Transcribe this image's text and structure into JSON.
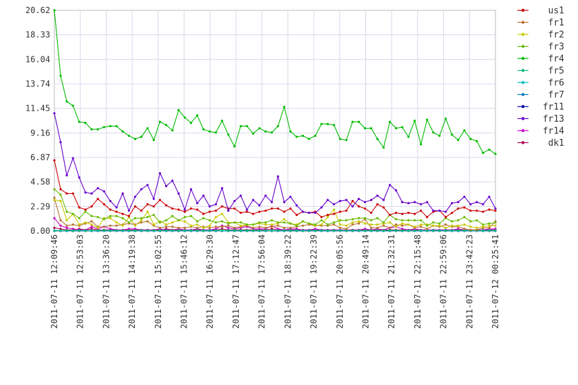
{
  "chart_data": {
    "type": "line",
    "title": "",
    "xlabel": "",
    "ylabel": "",
    "ylim": [
      0,
      20.62
    ],
    "grid": true,
    "legend_position": "right",
    "yticks": [
      "0.00",
      "2.29",
      "4.58",
      "6.87",
      "9.16",
      "11.45",
      "13.74",
      "16.04",
      "18.33",
      "20.62"
    ],
    "xticks": [
      "2011-07-11 12:09:46",
      "2011-07-11 12:53:03",
      "2011-07-11 13:36:20",
      "2011-07-11 14:19:38",
      "2011-07-11 15:02:55",
      "2011-07-11 15:46:12",
      "2011-07-11 16:29:30",
      "2011-07-11 17:12:47",
      "2011-07-11 17:56:04",
      "2011-07-11 18:39:22",
      "2011-07-11 19:22:39",
      "2011-07-11 20:05:56",
      "2011-07-11 20:49:14",
      "2011-07-11 21:32:31",
      "2011-07-11 22:15:48",
      "2011-07-11 22:59:06",
      "2011-07-11 23:42:23",
      "2011-07-12 00:25:41"
    ],
    "series": [
      {
        "name": "us1",
        "color": "#cc0000",
        "values": [
          6.6,
          3.9,
          3.5,
          3.5,
          2.2,
          2.0,
          2.3,
          3.0,
          2.5,
          2.0,
          1.8,
          1.6,
          1.4,
          2.3,
          1.9,
          2.5,
          2.3,
          2.9,
          2.4,
          2.1,
          2.0,
          1.8,
          2.1,
          2.0,
          1.6,
          1.8,
          1.9,
          2.3,
          2.1,
          2.1,
          1.7,
          1.8,
          1.6,
          1.8,
          1.9,
          2.1,
          2.1,
          1.8,
          2.1,
          1.5,
          1.8,
          1.7,
          1.8,
          1.3,
          1.5,
          1.6,
          1.8,
          1.9,
          2.8,
          2.3,
          2.1,
          1.7,
          2.5,
          2.2,
          1.5,
          1.7,
          1.6,
          1.7,
          1.6,
          1.9,
          1.3,
          1.8,
          1.9,
          1.3,
          1.7,
          2.1,
          2.2,
          1.9,
          1.9,
          1.8,
          2.0,
          1.9
        ]
      },
      {
        "name": "fr1",
        "color": "#b87333",
        "values": [
          3.1,
          1.0,
          0.5,
          0.6,
          0.5,
          0.7,
          0.9,
          0.4,
          0.4,
          0.5,
          0.5,
          0.6,
          0.7,
          0.6,
          0.8,
          0.9,
          0.5,
          0.3,
          0.4,
          0.4,
          0.3,
          0.3,
          0.4,
          0.3,
          0.4,
          0.3,
          0.4,
          0.4,
          0.5,
          0.3,
          0.4,
          0.5,
          0.3,
          0.4,
          0.3,
          0.4,
          0.5,
          0.3,
          0.3,
          0.4,
          0.5,
          0.6,
          0.5,
          0.5,
          0.5,
          0.6,
          0.3,
          0.2,
          0.6,
          0.7,
          1.1,
          0.3,
          0.3,
          0.5,
          0.3,
          0.6,
          0.5,
          0.6,
          0.3,
          0.4,
          0.2,
          0.5,
          0.4,
          0.6,
          0.4,
          0.4,
          0.2,
          0.1,
          0.1,
          0.3,
          0.3,
          0.9
        ]
      },
      {
        "name": "fr2",
        "color": "#c8c800",
        "values": [
          2.9,
          2.8,
          1.0,
          1.6,
          0.6,
          0.8,
          0.6,
          0.3,
          1.2,
          1.2,
          0.8,
          0.5,
          1.3,
          0.5,
          1.0,
          1.8,
          0.6,
          0.9,
          0.6,
          0.8,
          1.0,
          0.9,
          0.5,
          0.6,
          0.3,
          0.5,
          1.3,
          1.6,
          0.8,
          0.8,
          0.5,
          0.6,
          0.6,
          0.7,
          0.6,
          0.6,
          0.7,
          1.1,
          0.7,
          0.6,
          0.9,
          0.7,
          0.5,
          0.6,
          1.3,
          2.0,
          0.6,
          0.5,
          0.8,
          0.9,
          0.7,
          0.6,
          0.6,
          0.7,
          0.8,
          0.4,
          0.7,
          0.6,
          0.4,
          0.6,
          0.6,
          0.5,
          0.5,
          0.3,
          0.5,
          0.5,
          0.6,
          0.4,
          0.3,
          0.4,
          0.5,
          0.5
        ]
      },
      {
        "name": "fr3",
        "color": "#66bb00",
        "values": [
          3.9,
          3.4,
          1.8,
          1.6,
          1.2,
          1.8,
          1.4,
          1.3,
          1.1,
          1.4,
          1.4,
          1.2,
          0.8,
          1.2,
          1.2,
          1.3,
          1.5,
          0.8,
          1.0,
          1.4,
          1.0,
          1.3,
          1.4,
          0.9,
          1.2,
          1.0,
          0.8,
          0.9,
          0.7,
          0.8,
          0.8,
          0.6,
          0.6,
          0.8,
          0.8,
          1.0,
          0.8,
          0.8,
          0.7,
          0.5,
          0.9,
          0.7,
          0.6,
          1.0,
          0.6,
          0.8,
          1.0,
          1.0,
          1.1,
          1.2,
          1.2,
          1.0,
          1.2,
          0.8,
          1.5,
          1.1,
          1.0,
          1.0,
          1.0,
          1.0,
          0.5,
          0.8,
          0.7,
          1.2,
          0.9,
          1.0,
          1.3,
          0.9,
          1.0,
          0.6,
          0.7,
          0.8
        ]
      },
      {
        "name": "fr4",
        "color": "#00bb00",
        "values": [
          20.62,
          14.5,
          12.1,
          11.7,
          10.2,
          10.1,
          9.5,
          9.5,
          9.7,
          9.8,
          9.8,
          9.3,
          8.9,
          8.6,
          8.8,
          9.6,
          8.5,
          10.2,
          9.9,
          9.4,
          11.3,
          10.6,
          10.1,
          10.8,
          9.5,
          9.3,
          9.2,
          10.3,
          9.0,
          7.9,
          9.8,
          9.8,
          9.1,
          9.6,
          9.3,
          9.2,
          9.8,
          11.6,
          9.3,
          8.8,
          8.9,
          8.6,
          8.9,
          10.0,
          10.0,
          9.9,
          8.6,
          8.5,
          10.2,
          10.2,
          9.6,
          9.6,
          8.6,
          7.8,
          10.2,
          9.6,
          9.7,
          8.8,
          10.3,
          8.1,
          10.4,
          9.2,
          8.9,
          10.5,
          9.0,
          8.5,
          9.4,
          8.6,
          8.4,
          7.3,
          7.6,
          7.2
        ]
      },
      {
        "name": "fr5",
        "color": "#00bb77",
        "values": [
          0.05,
          0.05,
          0.05,
          0.05,
          0.05,
          0.05,
          0.05,
          0.05,
          0.05,
          0.05,
          0.05,
          0.05,
          0.05,
          0.05,
          0.05,
          0.05,
          0.05,
          0.05,
          0.05,
          0.05,
          0.05,
          0.05,
          0.05,
          0.05,
          0.05,
          0.05,
          0.05,
          0.05,
          0.05,
          0.05,
          0.05,
          0.05,
          0.05,
          0.05,
          0.05,
          0.05,
          0.05,
          0.05,
          0.05,
          0.05,
          0.05,
          0.05,
          0.05,
          0.05,
          0.05,
          0.05,
          0.05,
          0.05,
          0.05,
          0.05,
          0.05,
          0.05,
          0.05,
          0.05,
          0.05,
          0.05,
          0.05,
          0.05,
          0.05,
          0.05,
          0.05,
          0.05,
          0.05,
          0.05,
          0.05,
          0.05,
          0.05,
          0.05,
          0.05,
          0.05,
          0.05,
          0.05
        ]
      },
      {
        "name": "fr6",
        "color": "#00bbbb",
        "values": [
          0.03,
          0.03,
          0.03,
          0.03,
          0.03,
          0.03,
          0.03,
          0.03,
          0.03,
          0.03,
          0.03,
          0.03,
          0.03,
          0.03,
          0.03,
          0.03,
          0.03,
          0.03,
          0.03,
          0.03,
          0.03,
          0.03,
          0.03,
          0.03,
          0.03,
          0.03,
          0.03,
          0.03,
          0.03,
          0.03,
          0.03,
          0.03,
          0.03,
          0.03,
          0.03,
          0.03,
          0.03,
          0.03,
          0.03,
          0.03,
          0.03,
          0.03,
          0.03,
          0.03,
          0.03,
          0.03,
          0.03,
          0.03,
          0.03,
          0.03,
          0.03,
          0.03,
          0.03,
          0.03,
          0.03,
          0.03,
          0.03,
          0.03,
          0.03,
          0.03,
          0.03,
          0.03,
          0.03,
          0.03,
          0.03,
          0.03,
          0.03,
          0.03,
          0.03,
          0.03,
          0.03,
          0.03
        ]
      },
      {
        "name": "fr7",
        "color": "#0077bb",
        "values": [
          0.02,
          0.02,
          0.02,
          0.02,
          0.02,
          0.02,
          0.02,
          0.02,
          0.02,
          0.02,
          0.02,
          0.02,
          0.02,
          0.02,
          0.02,
          0.02,
          0.02,
          0.02,
          0.02,
          0.02,
          0.02,
          0.02,
          0.02,
          0.02,
          0.02,
          0.02,
          0.02,
          0.02,
          0.02,
          0.02,
          0.02,
          0.02,
          0.02,
          0.02,
          0.02,
          0.02,
          0.02,
          0.02,
          0.02,
          0.02,
          0.02,
          0.02,
          0.02,
          0.02,
          0.02,
          0.02,
          0.02,
          0.02,
          0.02,
          0.02,
          0.02,
          0.02,
          0.02,
          0.02,
          0.02,
          0.02,
          0.02,
          0.02,
          0.02,
          0.02,
          0.02,
          0.02,
          0.02,
          0.02,
          0.02,
          0.02,
          0.02,
          0.02,
          0.02,
          0.02,
          0.02,
          0.02
        ]
      },
      {
        "name": "fr11",
        "color": "#0000aa",
        "values": [
          0.01,
          0.01,
          0.01,
          0.01,
          0.01,
          0.01,
          0.01,
          0.01,
          0.01,
          0.01,
          0.01,
          0.01,
          0.01,
          0.01,
          0.01,
          0.01,
          0.01,
          0.01,
          0.01,
          0.01,
          0.01,
          0.01,
          0.01,
          0.01,
          0.01,
          0.01,
          0.01,
          0.01,
          0.01,
          0.01,
          0.01,
          0.01,
          0.01,
          0.01,
          0.01,
          0.01,
          0.01,
          0.01,
          0.01,
          0.01,
          0.01,
          0.01,
          0.01,
          0.01,
          0.01,
          0.01,
          0.01,
          0.01,
          0.01,
          0.01,
          0.01,
          0.01,
          0.01,
          0.01,
          0.01,
          0.01,
          0.01,
          0.01,
          0.01,
          0.01,
          0.01,
          0.01,
          0.01,
          0.01,
          0.01,
          0.01,
          0.01,
          0.01,
          0.01,
          0.01,
          0.01,
          0.01
        ]
      },
      {
        "name": "fr13",
        "color": "#6600cc",
        "values": [
          11.0,
          8.3,
          5.2,
          6.8,
          5.0,
          3.6,
          3.5,
          4.0,
          3.7,
          2.8,
          2.2,
          3.5,
          1.9,
          3.2,
          3.9,
          4.3,
          3.0,
          5.4,
          4.2,
          4.7,
          3.5,
          2.0,
          3.9,
          2.6,
          3.3,
          2.3,
          2.5,
          4.0,
          1.9,
          2.8,
          3.3,
          2.0,
          2.9,
          2.4,
          3.3,
          2.7,
          5.1,
          2.7,
          3.2,
          2.4,
          1.8,
          1.7,
          1.7,
          2.2,
          2.9,
          2.5,
          2.8,
          2.9,
          2.3,
          3.0,
          2.7,
          2.9,
          3.3,
          2.9,
          4.3,
          3.8,
          2.7,
          2.6,
          2.7,
          2.5,
          2.7,
          1.9,
          1.9,
          1.8,
          2.6,
          2.7,
          3.2,
          2.5,
          2.7,
          2.5,
          3.2,
          2.1
        ]
      },
      {
        "name": "fr14",
        "color": "#cc00cc",
        "values": [
          1.2,
          0.5,
          0.3,
          0.2,
          0.1,
          0.1,
          0.4,
          0.2,
          0.4,
          0.2,
          0.1,
          0.1,
          0.2,
          0.2,
          0.1,
          0.1,
          0.1,
          0.2,
          0.1,
          0.1,
          0.2,
          0.1,
          0.1,
          0.2,
          0.1,
          0.1,
          0.2,
          0.5,
          0.3,
          0.2,
          0.3,
          0.4,
          0.2,
          0.2,
          0.2,
          0.5,
          0.2,
          0.1,
          0.2,
          0.2,
          0.1,
          0.1,
          0.2,
          0.1,
          0.1,
          0.1,
          0.1,
          0.1,
          0.1,
          0.1,
          0.2,
          0.1,
          0.2,
          0.1,
          0.3,
          0.4,
          0.2,
          0.1,
          0.2,
          0.1,
          0.1,
          0.1,
          0.1,
          0.1,
          0.1,
          0.2,
          0.1,
          0.1,
          0.1,
          0.1,
          0.2,
          0.2
        ]
      },
      {
        "name": "dk1",
        "color": "#aa0055",
        "values": [
          0.3,
          0.2,
          0.1,
          0.1,
          0.2,
          0.1,
          0.2,
          0.1,
          0.1,
          0.1,
          0.1,
          0.1,
          0.1,
          0.1,
          0.1,
          0.1,
          0.1,
          0.1,
          0.2,
          0.1,
          0.1,
          0.1,
          0.1,
          0.1,
          0.1,
          0.1,
          0.1,
          0.2,
          0.1,
          0.1,
          0.1,
          0.1,
          0.1,
          0.1,
          0.1,
          0.2,
          0.1,
          0.1,
          0.1,
          0.1,
          0.1,
          0.1,
          0.1,
          0.1,
          0.1,
          0.1,
          0.1,
          0.1,
          0.1,
          0.1,
          0.1,
          0.1,
          0.1,
          0.1,
          0.1,
          0.1,
          0.1,
          0.1,
          0.1,
          0.1,
          0.1,
          0.1,
          0.1,
          0.1,
          0.1,
          0.1,
          0.1,
          0.1,
          0.1,
          0.1,
          0.1,
          0.1
        ]
      }
    ]
  }
}
